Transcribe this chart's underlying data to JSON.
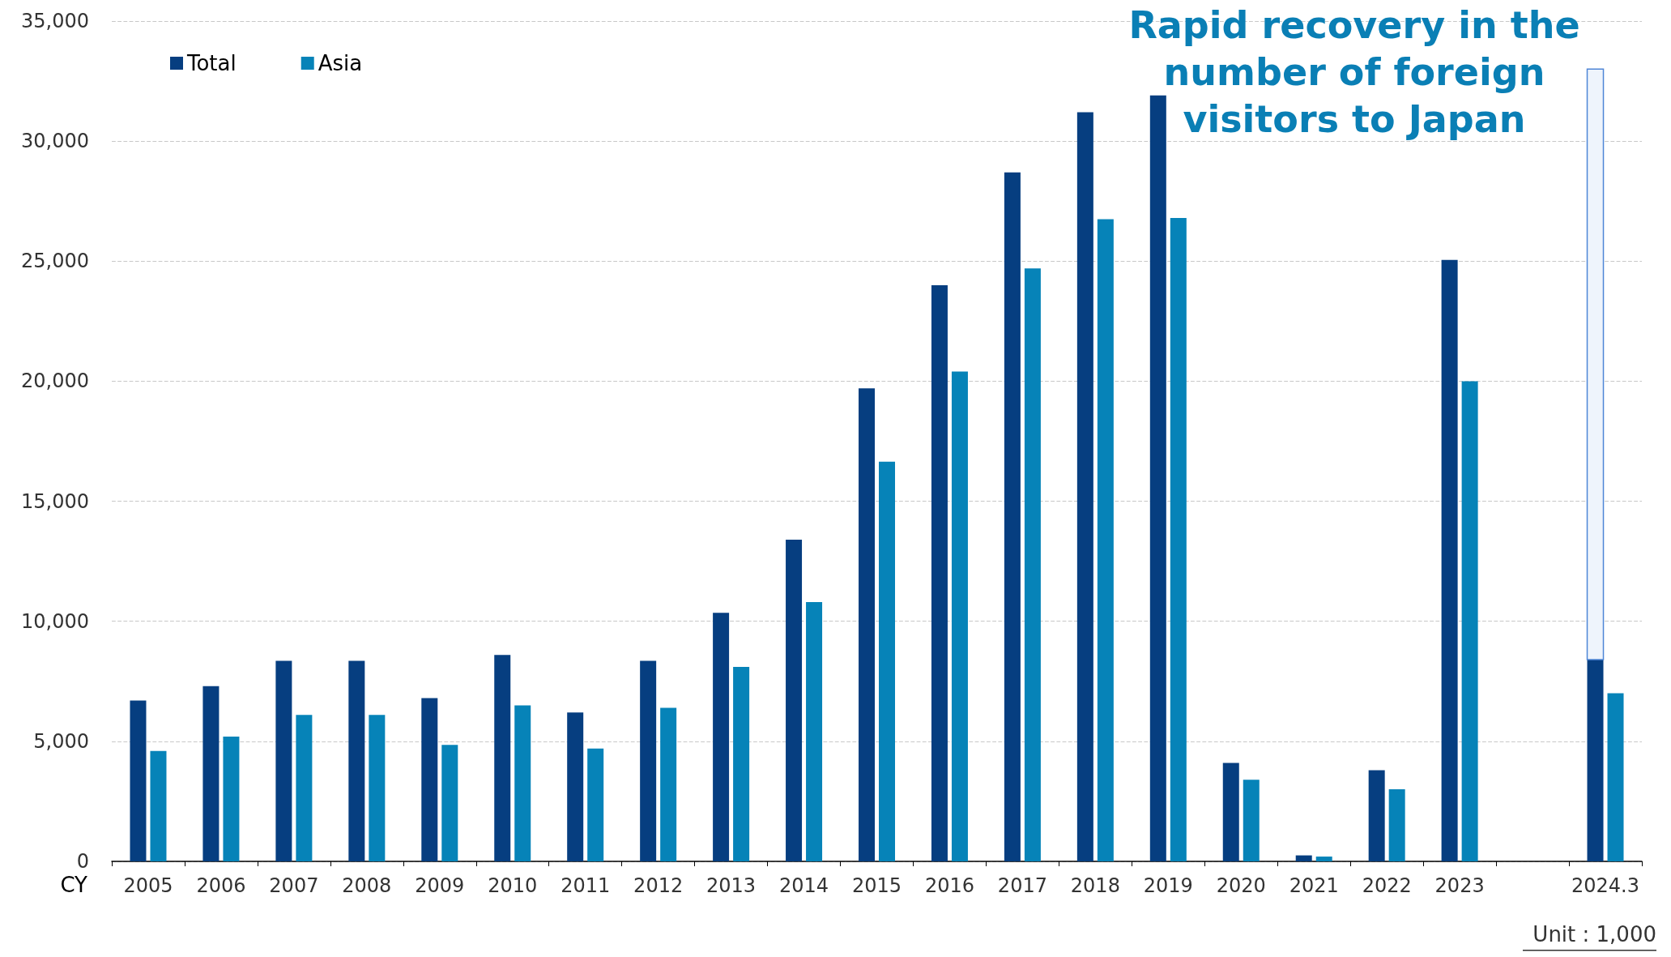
{
  "chart_data": {
    "type": "bar",
    "xlabel": "CY",
    "categories": [
      "2005",
      "2006",
      "2007",
      "2008",
      "2009",
      "2010",
      "2011",
      "2012",
      "2013",
      "2014",
      "2015",
      "2016",
      "2017",
      "2018",
      "2019",
      "2020",
      "2021",
      "2022",
      "2023",
      null,
      "2024.3"
    ],
    "series": [
      {
        "name": "Total",
        "color": "#063e80",
        "values": [
          6700,
          7300,
          8350,
          8350,
          6800,
          8600,
          6200,
          8350,
          10350,
          13400,
          19700,
          24000,
          28700,
          31200,
          31900,
          4100,
          250,
          3800,
          25050,
          null,
          8400
        ]
      },
      {
        "name": "Asia",
        "color": "#0683b8",
        "values": [
          4600,
          5200,
          6100,
          6100,
          4850,
          6500,
          4700,
          6400,
          8100,
          10800,
          16650,
          20400,
          24700,
          26750,
          26800,
          3400,
          200,
          3000,
          20000,
          null,
          7000
        ]
      },
      {
        "color": "#4f86d6",
        "base": [
          null,
          null,
          null,
          null,
          null,
          null,
          null,
          null,
          null,
          null,
          null,
          null,
          null,
          null,
          null,
          null,
          null,
          null,
          null,
          null,
          8400
        ],
        "values": [
          null,
          null,
          null,
          null,
          null,
          null,
          null,
          null,
          null,
          null,
          null,
          null,
          null,
          null,
          null,
          null,
          null,
          null,
          null,
          null,
          24600
        ]
      }
    ],
    "ylim": [
      0,
      35000
    ],
    "yticks": [
      {
        "value": 0,
        "label": "0"
      },
      {
        "value": 5000,
        "label": "5,000"
      },
      {
        "value": 10000,
        "label": "10,000"
      },
      {
        "value": 15000,
        "label": "15,000"
      },
      {
        "value": 20000,
        "label": "20,000"
      },
      {
        "value": 25000,
        "label": "25,000"
      },
      {
        "value": 30000,
        "label": "30,000"
      },
      {
        "value": 35000,
        "label": "35,000"
      }
    ],
    "grid": "y",
    "legend": "top left",
    "annotations": [
      "Rapid recovery in the\nnumber of foreign\nvisitors to Japan",
      "Unit : 1,000"
    ]
  }
}
